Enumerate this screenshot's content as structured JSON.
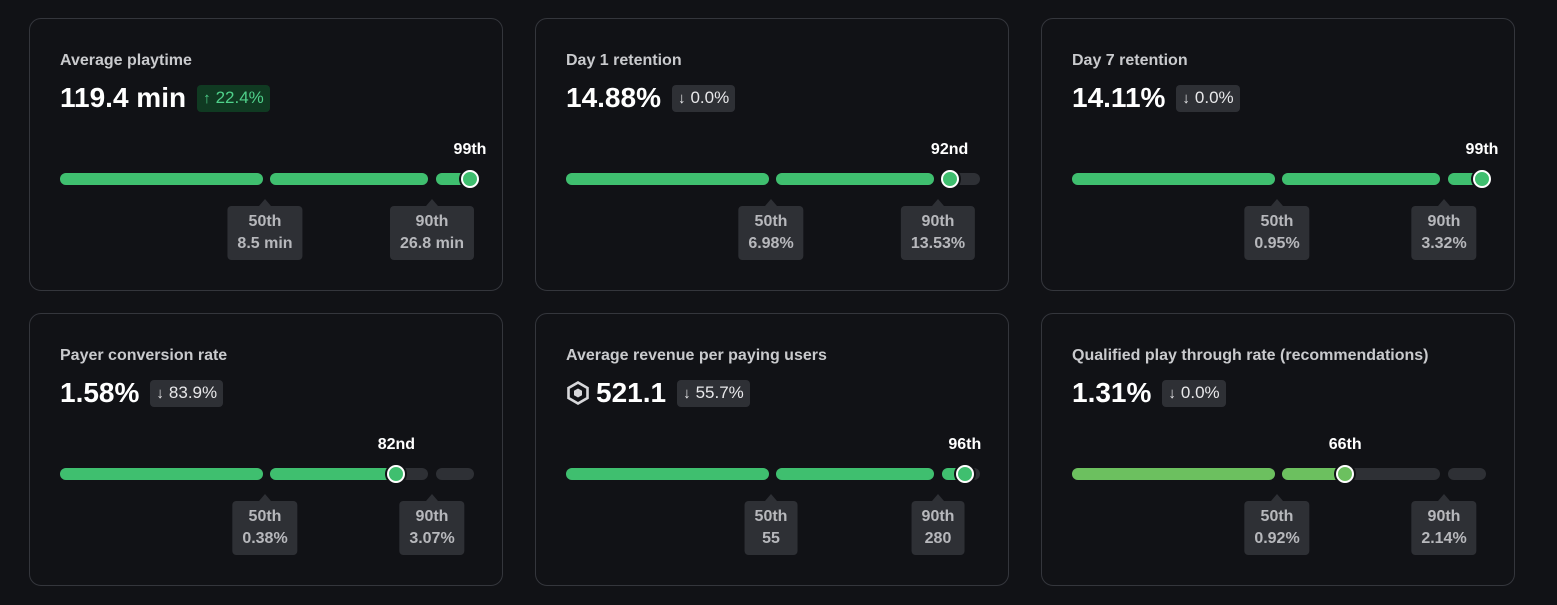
{
  "colors": {
    "bar_green": "#3fbf6f",
    "bar_light_green": "#6cc05f",
    "bar_empty": "#2e3035",
    "delta_up_text": "#4fd08a"
  },
  "cards": [
    {
      "title": "Average playtime",
      "value": "119.4 min",
      "delta": {
        "direction": "up",
        "arrow": "↑",
        "text": "22.4%"
      },
      "percentile_label": "99th",
      "percentile": 99,
      "markers": [
        {
          "label": "50th",
          "value": "8.5 min"
        },
        {
          "label": "90th",
          "value": "26.8 min"
        }
      ]
    },
    {
      "title": "Day 1 retention",
      "value": "14.88%",
      "delta": {
        "direction": "down",
        "arrow": "↓",
        "text": "0.0%"
      },
      "percentile_label": "92nd",
      "percentile": 92,
      "markers": [
        {
          "label": "50th",
          "value": "6.98%"
        },
        {
          "label": "90th",
          "value": "13.53%"
        }
      ]
    },
    {
      "title": "Day 7 retention",
      "value": "14.11%",
      "delta": {
        "direction": "down",
        "arrow": "↓",
        "text": "0.0%"
      },
      "percentile_label": "99th",
      "percentile": 99,
      "markers": [
        {
          "label": "50th",
          "value": "0.95%"
        },
        {
          "label": "90th",
          "value": "3.32%"
        }
      ]
    },
    {
      "title": "Payer conversion rate",
      "value": "1.58%",
      "delta": {
        "direction": "down",
        "arrow": "↓",
        "text": "83.9%"
      },
      "percentile_label": "82nd",
      "percentile": 82,
      "markers": [
        {
          "label": "50th",
          "value": "0.38%"
        },
        {
          "label": "90th",
          "value": "3.07%"
        }
      ]
    },
    {
      "title": "Average revenue per paying users",
      "value": "521.1",
      "icon": "robux-icon",
      "delta": {
        "direction": "down",
        "arrow": "↓",
        "text": "55.7%"
      },
      "percentile_label": "96th",
      "percentile": 96,
      "markers": [
        {
          "label": "50th",
          "value": "55"
        },
        {
          "label": "90th",
          "value": "280"
        }
      ]
    },
    {
      "title": "Qualified play through rate (recommendations)",
      "value": "1.31%",
      "delta": {
        "direction": "down",
        "arrow": "↓",
        "text": "0.0%"
      },
      "percentile_label": "66th",
      "percentile": 66,
      "markers": [
        {
          "label": "50th",
          "value": "0.92%"
        },
        {
          "label": "90th",
          "value": "2.14%"
        }
      ]
    }
  ]
}
